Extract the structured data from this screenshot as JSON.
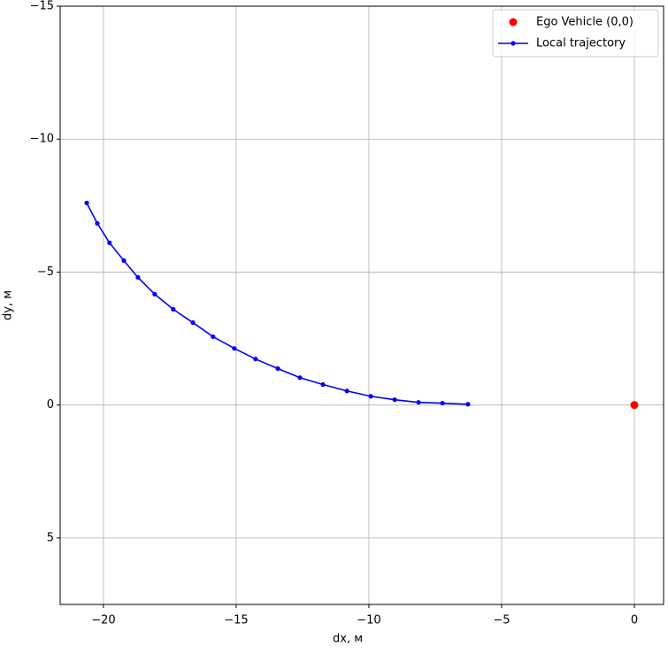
{
  "chart_data": {
    "type": "line",
    "xlabel": "dx, м",
    "ylabel": "dy, м",
    "xlim": [
      -21.63,
      1.1
    ],
    "ylim": [
      7.5,
      -15
    ],
    "y_inverted": true,
    "xticks": [
      {
        "value": -20,
        "label": "−20"
      },
      {
        "value": -15,
        "label": "−15"
      },
      {
        "value": -10,
        "label": "−10"
      },
      {
        "value": -5,
        "label": "−5"
      },
      0
    ],
    "yticks": [
      {
        "value": -15,
        "label": "−15"
      },
      {
        "value": -10,
        "label": "−10"
      },
      {
        "value": -5,
        "label": "−5"
      },
      0,
      5
    ],
    "grid": true,
    "legend": "upper right",
    "series": [
      {
        "name": "Ego Vehicle (0,0)",
        "color": "#ff0000",
        "mode": "markers",
        "x": [
          0
        ],
        "values": [
          0
        ]
      },
      {
        "name": "Local trajectory",
        "color": "#0000ff",
        "mode": "lines+markers",
        "x": [
          -20.63,
          -20.23,
          -19.77,
          -19.23,
          -18.7,
          -18.07,
          -17.37,
          -16.63,
          -15.87,
          -15.07,
          -14.27,
          -13.43,
          -12.6,
          -11.73,
          -10.83,
          -9.93,
          -9.03,
          -8.13,
          -7.23,
          -6.27
        ],
        "values": [
          -7.6,
          -6.83,
          -6.1,
          -5.43,
          -4.8,
          -4.17,
          -3.6,
          -3.1,
          -2.57,
          -2.13,
          -1.73,
          -1.37,
          -1.03,
          -0.77,
          -0.53,
          -0.33,
          -0.2,
          -0.1,
          -0.07,
          -0.03
        ]
      }
    ]
  }
}
